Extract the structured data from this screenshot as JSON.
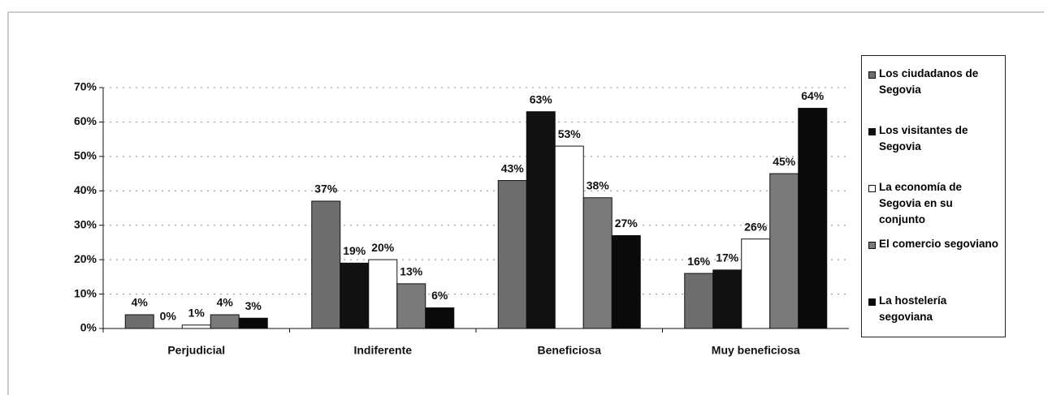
{
  "chart_data": {
    "type": "bar",
    "categories": [
      "Perjudicial",
      "Indiferente",
      "Beneficiosa",
      "Muy beneficiosa"
    ],
    "series": [
      {
        "name": "Los ciudadanos de Segovia",
        "color": "#6e6e6e",
        "values": [
          4,
          37,
          43,
          16
        ],
        "value_labels": [
          "4%",
          "37%",
          "43%",
          "16%"
        ]
      },
      {
        "name": "Los visitantes de Segovia",
        "color": "#111111",
        "values": [
          0,
          19,
          63,
          17
        ],
        "value_labels": [
          "0%",
          "19%",
          "63%",
          "17%"
        ]
      },
      {
        "name": "La economía de Segovia en su conjunto",
        "color": "#ffffff",
        "values": [
          1,
          20,
          53,
          26
        ],
        "value_labels": [
          "1%",
          "20%",
          "53%",
          "26%"
        ]
      },
      {
        "name": "El comercio segoviano",
        "color": "#7a7a7a",
        "values": [
          4,
          13,
          38,
          45
        ],
        "value_labels": [
          "4%",
          "13%",
          "38%",
          "45%"
        ]
      },
      {
        "name": "La hostelería segoviana",
        "color": "#0a0a0a",
        "values": [
          3,
          6,
          27,
          64
        ],
        "value_labels": [
          "3%",
          "6%",
          "27%",
          "64%"
        ]
      }
    ],
    "ylim": [
      0,
      70
    ],
    "yticks": [
      {
        "value": 0,
        "label": "0%"
      },
      {
        "value": 10,
        "label": "10%"
      },
      {
        "value": 20,
        "label": "20%"
      },
      {
        "value": 30,
        "label": "30%"
      },
      {
        "value": 40,
        "label": "40%"
      },
      {
        "value": 50,
        "label": "50%"
      },
      {
        "value": 60,
        "label": "60%"
      },
      {
        "value": 70,
        "label": "70%"
      }
    ],
    "grid": true
  }
}
